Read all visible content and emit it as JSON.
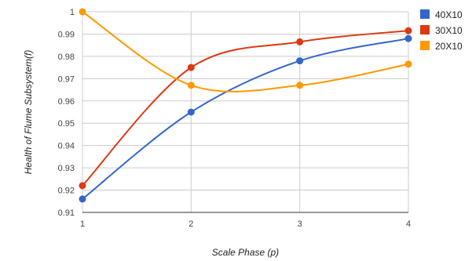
{
  "chart_data": {
    "type": "line",
    "title": "",
    "xlabel": "Scale Phase (p)",
    "ylabel": "Health of Flume Subsystem(f)",
    "x": [
      1,
      2,
      3,
      4
    ],
    "x_tick_labels": [
      "1",
      "2",
      "3",
      "4"
    ],
    "xlim": [
      1,
      4
    ],
    "ylim": [
      0.91,
      1.0
    ],
    "y_ticks": [
      0.91,
      0.92,
      0.93,
      0.94,
      0.95,
      0.96,
      0.97,
      0.98,
      0.99,
      1.0
    ],
    "y_tick_labels": [
      "0.91",
      "0.92",
      "0.93",
      "0.94",
      "0.95",
      "0.96",
      "0.97",
      "0.98",
      "0.99",
      "1"
    ],
    "grid": true,
    "smooth": true,
    "legend_position": "right",
    "series": [
      {
        "name": "40X10",
        "color": "#3366cc",
        "values": [
          0.916,
          0.955,
          0.978,
          0.988
        ]
      },
      {
        "name": "30X10",
        "color": "#dc3912",
        "values": [
          0.922,
          0.975,
          0.9865,
          0.9915
        ]
      },
      {
        "name": "20X10",
        "color": "#ff9900",
        "values": [
          1.0,
          0.967,
          0.967,
          0.9765
        ]
      }
    ]
  }
}
